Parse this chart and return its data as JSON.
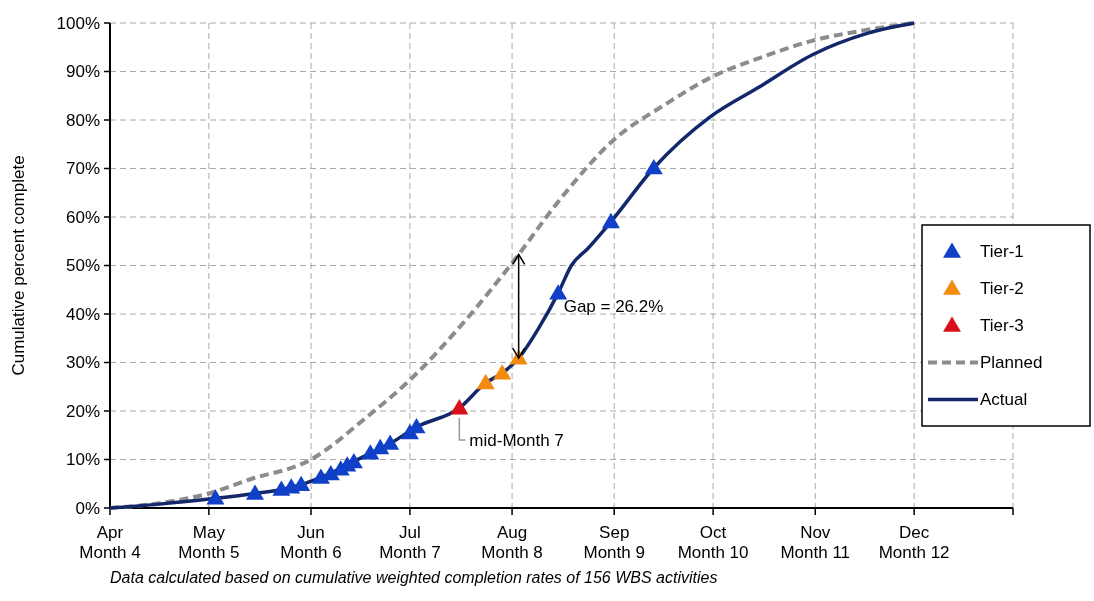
{
  "chart_data": {
    "type": "line",
    "ylabel": "Cumulative percent complete",
    "xlim": [
      "--04-01",
      "--12-31"
    ],
    "xticks": [
      {
        "value": "--04",
        "label": "Apr\nMonth 4"
      },
      {
        "value": "--05",
        "label": "May\nMonth 5"
      },
      {
        "value": "--06",
        "label": "Jun\nMonth 6"
      },
      {
        "value": "--07",
        "label": "Jul\nMonth 7"
      },
      {
        "value": "--08",
        "label": "Aug\nMonth 8"
      },
      {
        "value": "--09",
        "label": "Sep\nMonth 9"
      },
      {
        "value": "--10",
        "label": "Oct\nMonth 10"
      },
      {
        "value": "--11",
        "label": "Nov\nMonth 11"
      },
      {
        "value": "--12",
        "label": "Dec\nMonth 12"
      },
      {
        "value": "--12-31",
        "label": null
      }
    ],
    "ylim": [
      0,
      100
    ],
    "yticks": [
      {
        "value": 0,
        "label": "0%"
      },
      {
        "value": 10,
        "label": "10%"
      },
      {
        "value": 20,
        "label": "20%"
      },
      {
        "value": 30,
        "label": "30%"
      },
      {
        "value": 40,
        "label": "40%"
      },
      {
        "value": 50,
        "label": "50%"
      },
      {
        "value": 60,
        "label": "60%"
      },
      {
        "value": 70,
        "label": "70%"
      },
      {
        "value": 80,
        "label": "80%"
      },
      {
        "value": 90,
        "label": "90%"
      },
      {
        "value": 100,
        "label": "100%"
      }
    ],
    "grid": true,
    "legend": "right",
    "series": [
      {
        "name": "Tier-1",
        "type": "scatter",
        "marker": "triangle",
        "color": "#1040c8",
        "x": [
          "--05-03",
          "--05-15",
          "--05-23",
          "--05-26",
          "--05-29",
          "--06-04",
          "--06-07",
          "--06-10",
          "--06-12",
          "--06-14",
          "--06-19",
          "--06-22",
          "--06-25",
          "--07-01",
          "--07-03",
          "--08-15",
          "--08-31",
          "--09-13"
        ],
        "values": [
          2.0,
          3.0,
          3.8,
          4.3,
          4.8,
          6.3,
          7.0,
          8.0,
          8.8,
          9.5,
          11.3,
          12.4,
          13.3,
          15.5,
          16.7,
          44.3,
          59.0,
          70.1
        ]
      },
      {
        "name": "Tier-2",
        "type": "scatter",
        "marker": "triangle",
        "color": "#f28c0f",
        "x": [
          "--07-24",
          "--07-29",
          "--08-03"
        ],
        "values": [
          25.8,
          27.8,
          30.9
        ]
      },
      {
        "name": "Tier-3",
        "type": "scatter",
        "marker": "triangle",
        "color": "#d9101a",
        "x": [
          "--07-16"
        ],
        "values": [
          20.6
        ]
      },
      {
        "name": "Planned",
        "type": "line",
        "marker": "none",
        "line_style": "dashed",
        "color": "#8c8c8c",
        "x": [
          "--04-01",
          "--04-16",
          "--05-01",
          "--05-13",
          "--06-01",
          "--06-18",
          "--07-01",
          "--07-18",
          "--08-01",
          "--08-16",
          "--09-01",
          "--09-16",
          "--10-01",
          "--10-16",
          "--11-01",
          "--11-16",
          "--12-01"
        ],
        "values": [
          0,
          1,
          3,
          5.8,
          10,
          18.8,
          26.4,
          38.8,
          50.5,
          64,
          76,
          83,
          89,
          93,
          96.5,
          98.5,
          100
        ]
      },
      {
        "name": "Actual",
        "type": "line",
        "marker": "none",
        "line_style": "solid",
        "color": "#13286b",
        "x": [
          "--04-01",
          "--04-16",
          "--05-03",
          "--05-15",
          "--05-23",
          "--05-29",
          "--06-04",
          "--06-19",
          "--06-25",
          "--07-03",
          "--07-16",
          "--07-24",
          "--07-29",
          "--08-03",
          "--08-09",
          "--08-15",
          "--08-19",
          "--08-24",
          "--08-31",
          "--09-13",
          "--09-30",
          "--10-15",
          "--10-31",
          "--11-17",
          "--12-01"
        ],
        "values": [
          0,
          0.8,
          2.0,
          3.0,
          3.8,
          4.8,
          6.3,
          11.3,
          13.3,
          16.7,
          20.6,
          25.8,
          27.8,
          30.9,
          37,
          44.3,
          50,
          53.5,
          59.0,
          70.1,
          80.6,
          86.8,
          93.4,
          97.9,
          100
        ]
      }
    ],
    "annotations": [
      "Gap = 26.2%",
      {
        "text": "mid-Month 7",
        "x": "--07-16",
        "y": 20.6
      },
      "Data calculated based on cumulative weighted completion rates of 156 WBS activities"
    ]
  }
}
